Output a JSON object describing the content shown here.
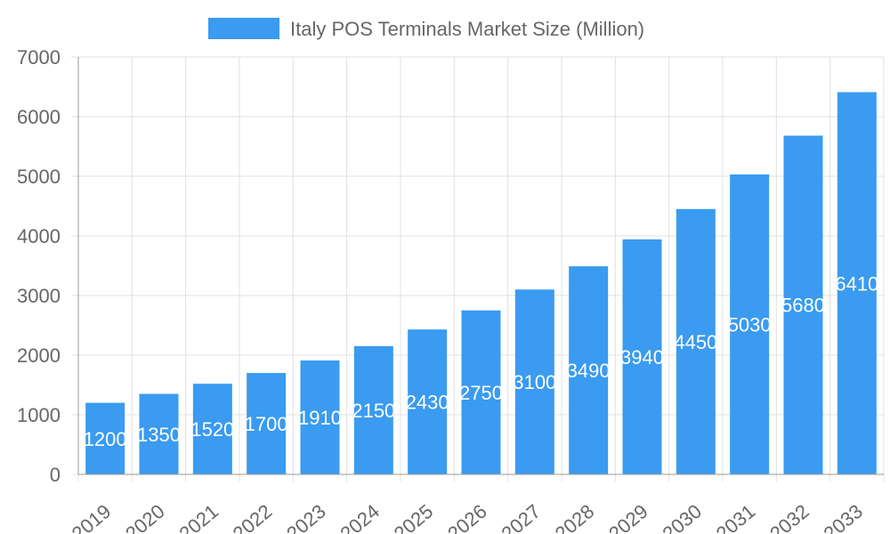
{
  "chart_data": {
    "type": "bar",
    "categories": [
      "2019",
      "2020",
      "2021",
      "2022",
      "2023",
      "2024",
      "2025",
      "2026",
      "2027",
      "2028",
      "2029",
      "2030",
      "2031",
      "2032",
      "2033"
    ],
    "series": [
      {
        "name": "Italy POS Terminals Market Size (Million)",
        "values": [
          1200,
          1350,
          1520,
          1700,
          1910,
          2150,
          2430,
          2750,
          3100,
          3490,
          3940,
          4450,
          5030,
          5680,
          6410
        ]
      }
    ],
    "ylim": [
      0,
      7000
    ],
    "yticks": [
      0,
      1000,
      2000,
      3000,
      4000,
      5000,
      6000,
      7000
    ],
    "grid": true,
    "legend": "top",
    "data_labels": true,
    "colors": {
      "bar": "#3a9bf0",
      "grid": "#e0e0e0",
      "axis": "#999999",
      "text": "#666666"
    }
  }
}
